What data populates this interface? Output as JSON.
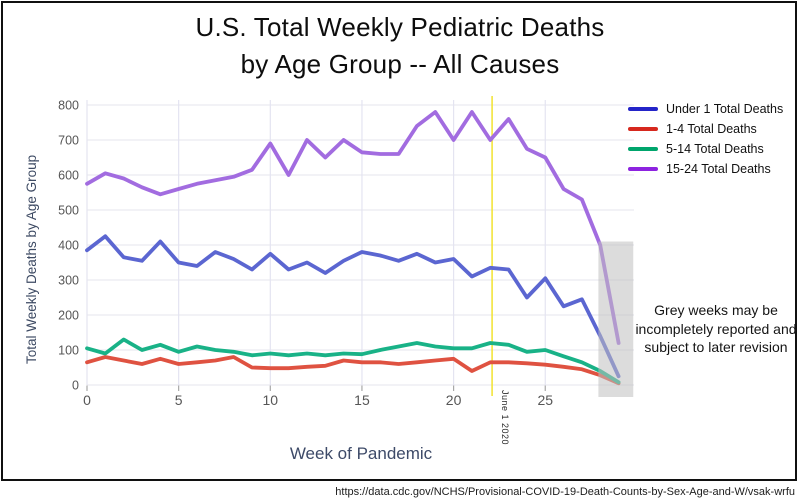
{
  "title": {
    "line1": "U.S. Total Weekly Pediatric Deaths",
    "line2": "by Age Group -- All Causes"
  },
  "axes": {
    "x_label": "Week of Pandemic",
    "y_label": "Total Weekly Deaths by Age Group"
  },
  "annotations": {
    "grey_note": "Grey weeks may be incompletely reported and subject to later revision",
    "event_line_label": "June 1 2020"
  },
  "source_url": "https://data.cdc.gov/NCHS/Provisional-COVID-19-Death-Counts-by-Sex-Age-and-W/vsak-wrfu",
  "colors": {
    "frame_border": "#101010",
    "grid_horizontal": "#e9e9f0",
    "grid_vertical": "#e4e4f1",
    "tick_mark": "#a8a8a8",
    "event_line": "#f2e43c",
    "grey_region": "#bfbfbf",
    "axis_title": "#3d4a68",
    "tick_label": "#565656"
  },
  "chart_data": {
    "type": "line",
    "title": "U.S. Total Weekly Pediatric Deaths by Age Group -- All Causes",
    "xlabel": "Week of Pandemic",
    "ylabel": "Total Weekly Deaths by Age Group",
    "xlim": [
      0,
      29.8
    ],
    "ylim": [
      0,
      800
    ],
    "x_ticks": [
      0,
      5,
      10,
      15,
      20,
      25
    ],
    "y_ticks": [
      0,
      100,
      200,
      300,
      400,
      500,
      600,
      700,
      800
    ],
    "grid": true,
    "legend_position": "top-right",
    "x": [
      0,
      1,
      2,
      3,
      4,
      5,
      6,
      7,
      8,
      9,
      10,
      11,
      12,
      13,
      14,
      15,
      16,
      17,
      18,
      19,
      20,
      21,
      22,
      23,
      24,
      25,
      26,
      27,
      28,
      29
    ],
    "series": [
      {
        "name": "Under 1 Total Deaths",
        "legend_color": "#2424c8",
        "line_color": "#5b66d1",
        "values": [
          385,
          425,
          365,
          355,
          410,
          350,
          340,
          380,
          360,
          330,
          375,
          330,
          350,
          320,
          355,
          380,
          370,
          355,
          375,
          350,
          360,
          310,
          335,
          330,
          250,
          305,
          225,
          245,
          140,
          25
        ]
      },
      {
        "name": "1-4 Total Deaths",
        "legend_color": "#d6281e",
        "line_color": "#df5241",
        "values": [
          65,
          80,
          70,
          60,
          75,
          60,
          65,
          70,
          80,
          50,
          48,
          48,
          52,
          55,
          70,
          65,
          65,
          60,
          65,
          70,
          75,
          40,
          65,
          65,
          62,
          58,
          52,
          45,
          28,
          5
        ]
      },
      {
        "name": "5-14 Total Deaths",
        "legend_color": "#00a56c",
        "line_color": "#19b287",
        "values": [
          105,
          90,
          130,
          100,
          115,
          95,
          110,
          100,
          95,
          85,
          90,
          85,
          90,
          85,
          90,
          88,
          100,
          110,
          120,
          110,
          105,
          105,
          120,
          115,
          95,
          100,
          82,
          65,
          40,
          8
        ]
      },
      {
        "name": "15-24 Total Deaths",
        "legend_color": "#8d23e0",
        "line_color": "#a26ce0",
        "values": [
          575,
          605,
          590,
          565,
          545,
          560,
          575,
          585,
          595,
          615,
          690,
          600,
          700,
          650,
          700,
          665,
          660,
          660,
          740,
          780,
          700,
          780,
          700,
          760,
          675,
          650,
          560,
          530,
          400,
          120
        ]
      }
    ],
    "event_line": {
      "x": 22.1,
      "label": "June 1 2020"
    },
    "grey_region": {
      "x_start": 27.9,
      "x_end": 29.8,
      "y_top": 410,
      "note": "Grey weeks may be incompletely reported and subject to later revision"
    }
  }
}
